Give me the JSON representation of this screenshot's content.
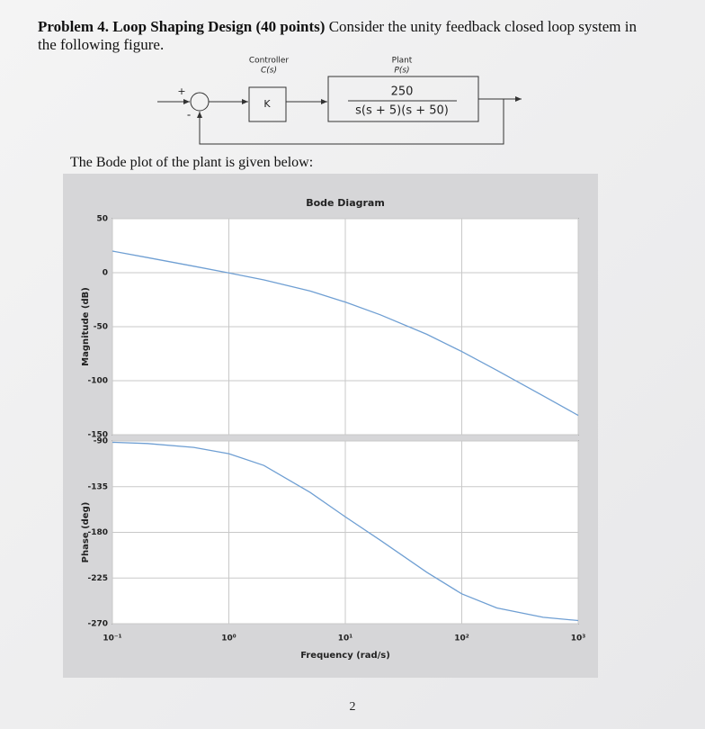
{
  "problem": {
    "heading": "Problem 4. Loop Shaping Design (40 points)",
    "text": "Consider the unity feedback closed loop system in the following figure."
  },
  "diagram": {
    "plus": "+",
    "minus": "-",
    "controller_label": "Controller",
    "controller_symbol": "C(s)",
    "controller_block": "K",
    "plant_label": "Plant",
    "plant_symbol": "P(s)",
    "plant_numerator": "250",
    "plant_denominator": "s(s + 5)(s + 50)"
  },
  "caption": "The Bode plot of the plant is given below:",
  "page_number": "2",
  "chart_data": [
    {
      "type": "line",
      "title": "Bode Diagram",
      "y_label": "Magnitude (dB)",
      "xscale": "log",
      "xlim": [
        0.1,
        1000
      ],
      "x": [
        0.1,
        0.2,
        0.5,
        1,
        2,
        5,
        10,
        20,
        50,
        100,
        200,
        500,
        1000
      ],
      "values": [
        20.0,
        14.0,
        6.0,
        -0.2,
        -6.7,
        -17.0,
        -27.2,
        -39.0,
        -57.0,
        -73.0,
        -90.4,
        -114.0,
        -132.1
      ],
      "color": "#6f9fd3",
      "ylim": [
        -150,
        50
      ],
      "yticks": [
        50,
        0,
        -50,
        -100,
        -150
      ],
      "grid": true
    },
    {
      "type": "line",
      "y_label": "Phase (deg)",
      "x_label": "Frequency (rad/s)",
      "xscale": "log",
      "xlim": [
        0.1,
        1000
      ],
      "x": [
        0.1,
        0.2,
        0.5,
        1,
        2,
        5,
        10,
        20,
        50,
        100,
        200,
        500,
        1000
      ],
      "values": [
        -91.3,
        -92.5,
        -96.3,
        -102.5,
        -114.1,
        -140.7,
        -164.7,
        -187.8,
        -219.3,
        -240.6,
        -254.5,
        -263.7,
        -266.9
      ],
      "color": "#6f9fd3",
      "ylim": [
        -270,
        -90
      ],
      "yticks": [
        -90,
        -135,
        -180,
        -225,
        -270
      ],
      "xticks": [
        {
          "value": 0.1,
          "label": "10⁻¹"
        },
        {
          "value": 1,
          "label": "10⁰"
        },
        {
          "value": 10,
          "label": "10¹"
        },
        {
          "value": 100,
          "label": "10²"
        },
        {
          "value": 1000,
          "label": "10³"
        }
      ],
      "grid": true
    }
  ]
}
